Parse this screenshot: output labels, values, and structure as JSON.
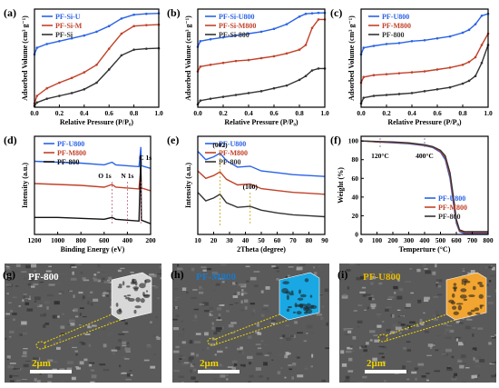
{
  "panels": [
    {
      "id": "a",
      "letter": "(a)",
      "ylabel": "Adsorbed Volume (cm³ g⁻¹)",
      "xlabel": "Relative Pressure (P/P₀)",
      "xticks": [
        "0.0",
        "0.2",
        "0.4",
        "0.6",
        "0.8",
        "1.0"
      ],
      "legend": [
        {
          "label": "PF-Si-U",
          "color": "#2a63e6"
        },
        {
          "label": "PF-Si-M",
          "color": "#c1422a"
        },
        {
          "label": "PF-Si",
          "color": "#333333"
        }
      ]
    },
    {
      "id": "b",
      "letter": "(b)",
      "ylabel": "Adsorbed Volume (cm³ g⁻¹)",
      "xlabel": "Relative Pressure (P/P₀)",
      "xticks": [
        "0.0",
        "0.2",
        "0.4",
        "0.6",
        "0.8",
        "1.0"
      ],
      "legend": [
        {
          "label": "PF-Si-U800",
          "color": "#2a63e6"
        },
        {
          "label": "PF-Si-M800",
          "color": "#c1422a"
        },
        {
          "label": "PF-Si-800",
          "color": "#333333"
        }
      ]
    },
    {
      "id": "c",
      "letter": "(c)",
      "ylabel": "Adsorbed Volume (cm³ g⁻¹)",
      "xlabel": "Relative Pressure (P/P₀)",
      "xticks": [
        "0.0",
        "0.2",
        "0.4",
        "0.6",
        "0.8",
        "1.0"
      ],
      "legend": [
        {
          "label": "PF-U800",
          "color": "#2a63e6"
        },
        {
          "label": "PF-M800",
          "color": "#c1422a"
        },
        {
          "label": "PF-800",
          "color": "#333333"
        }
      ]
    },
    {
      "id": "d",
      "letter": "(d)",
      "ylabel": "Intensity (a.u.)",
      "xlabel": "Binding Energy (eV)",
      "xticks": [
        "1200",
        "1000",
        "800",
        "600",
        "400",
        "200"
      ],
      "legend": [
        {
          "label": "PF-U800",
          "color": "#2a63e6"
        },
        {
          "label": "PF-M800",
          "color": "#c1422a"
        },
        {
          "label": "PF-800",
          "color": "#111111"
        }
      ],
      "annotations": [
        "O 1s",
        "N 1s",
        "C 1s"
      ]
    },
    {
      "id": "e",
      "letter": "(e)",
      "ylabel": "Intensity (a.u.)",
      "xlabel": "2Theta (degree)",
      "xticks": [
        "10",
        "20",
        "30",
        "40",
        "50",
        "60",
        "70",
        "80",
        "90"
      ],
      "legend": [
        {
          "label": "PF-U800",
          "color": "#2a63e6"
        },
        {
          "label": "PF-M800",
          "color": "#c1422a"
        },
        {
          "label": "PF-800",
          "color": "#333333"
        }
      ],
      "annotations": [
        "(002)",
        "(100)"
      ]
    },
    {
      "id": "f",
      "letter": "(f)",
      "ylabel": "Weight (%)",
      "xlabel": "Temperture (°C)",
      "xticks": [
        "0",
        "100",
        "200",
        "300",
        "400",
        "500",
        "600",
        "700",
        "800"
      ],
      "yticks": [
        "0",
        "20",
        "40",
        "60",
        "80",
        "100"
      ],
      "legend": [
        {
          "label": "PF-U800",
          "color": "#2a63e6"
        },
        {
          "label": "PF-M800",
          "color": "#c1422a"
        },
        {
          "label": "PF-800",
          "color": "#333333"
        }
      ],
      "annotations": [
        "120°C",
        "400°C"
      ]
    }
  ],
  "sem": [
    {
      "letter": "(g)",
      "label": "PF-800",
      "label_color": "#ffffff",
      "inset_color": "#d8d8d8",
      "scale": "2μm"
    },
    {
      "letter": "(h)",
      "label": "PF-M800",
      "label_color": "#1c78c8",
      "inset_color": "#19a8e4",
      "scale": "2μm"
    },
    {
      "letter": "(i)",
      "label": "PF-U800",
      "label_color": "#e6b800",
      "inset_color": "#f2a530",
      "scale": "2μm"
    }
  ],
  "chart_data": [
    {
      "type": "line",
      "panel": "a",
      "xlabel": "Relative Pressure (P/P₀)",
      "ylabel": "Adsorbed Volume (cm³ g⁻¹)",
      "xlim": [
        0,
        1
      ],
      "series": [
        {
          "name": "PF-Si-U",
          "x": [
            0,
            0.02,
            0.1,
            0.2,
            0.3,
            0.4,
            0.5,
            0.6,
            0.7,
            0.8,
            0.9,
            1.0
          ],
          "y": [
            5.6,
            6.3,
            6.7,
            7.0,
            7.3,
            7.6,
            8.0,
            8.6,
            9.4,
            9.8,
            9.9,
            9.95
          ]
        },
        {
          "name": "PF-Si-M",
          "x": [
            0,
            0.02,
            0.1,
            0.2,
            0.3,
            0.4,
            0.5,
            0.6,
            0.7,
            0.8,
            0.9,
            1.0
          ],
          "y": [
            0.4,
            1.2,
            2.0,
            2.6,
            3.1,
            3.7,
            4.5,
            6.2,
            7.8,
            8.6,
            8.7,
            8.75
          ]
        },
        {
          "name": "PF-Si",
          "x": [
            0,
            0.02,
            0.1,
            0.2,
            0.3,
            0.4,
            0.5,
            0.6,
            0.7,
            0.8,
            0.9,
            1.0
          ],
          "y": [
            0.15,
            0.5,
            0.9,
            1.2,
            1.5,
            1.9,
            2.6,
            4.0,
            5.5,
            6.1,
            6.2,
            6.25
          ]
        }
      ]
    },
    {
      "type": "line",
      "panel": "b",
      "xlabel": "Relative Pressure (P/P₀)",
      "ylabel": "Adsorbed Volume (cm³ g⁻¹)",
      "xlim": [
        0,
        1
      ],
      "series": [
        {
          "name": "PF-Si-U800",
          "x": [
            0,
            0.02,
            0.1,
            0.2,
            0.3,
            0.4,
            0.5,
            0.6,
            0.7,
            0.8,
            0.85,
            0.9,
            0.95,
            1.0
          ],
          "y": [
            6.4,
            7.0,
            7.2,
            7.4,
            7.6,
            7.8,
            8.0,
            8.3,
            8.8,
            9.6,
            9.9,
            9.95,
            10.0,
            10.0
          ]
        },
        {
          "name": "PF-Si-M800",
          "x": [
            0,
            0.02,
            0.1,
            0.2,
            0.3,
            0.4,
            0.5,
            0.6,
            0.7,
            0.8,
            0.85,
            0.9,
            0.95,
            1.0
          ],
          "y": [
            3.8,
            4.3,
            4.5,
            4.7,
            4.9,
            5.0,
            5.2,
            5.4,
            5.7,
            6.1,
            6.6,
            8.4,
            9.3,
            9.3
          ]
        },
        {
          "name": "PF-Si-800",
          "x": [
            0,
            0.02,
            0.1,
            0.2,
            0.3,
            0.4,
            0.5,
            0.6,
            0.7,
            0.8,
            0.85,
            0.9,
            0.95,
            1.0
          ],
          "y": [
            0.3,
            0.7,
            0.9,
            1.1,
            1.3,
            1.5,
            1.7,
            2.0,
            2.3,
            2.9,
            3.3,
            3.9,
            4.1,
            4.1
          ]
        }
      ]
    },
    {
      "type": "line",
      "panel": "c",
      "xlabel": "Relative Pressure (P/P₀)",
      "ylabel": "Adsorbed Volume (cm³ g⁻¹)",
      "xlim": [
        0,
        1
      ],
      "series": [
        {
          "name": "PF-U800",
          "x": [
            0,
            0.02,
            0.1,
            0.2,
            0.3,
            0.4,
            0.5,
            0.6,
            0.7,
            0.8,
            0.85,
            0.9,
            0.95,
            1.0
          ],
          "y": [
            5.6,
            6.3,
            6.5,
            6.7,
            6.8,
            7.0,
            7.1,
            7.3,
            7.5,
            7.9,
            8.2,
            8.8,
            9.7,
            9.9
          ]
        },
        {
          "name": "PF-M800",
          "x": [
            0,
            0.02,
            0.1,
            0.2,
            0.3,
            0.4,
            0.5,
            0.6,
            0.7,
            0.8,
            0.85,
            0.9,
            0.95,
            1.0
          ],
          "y": [
            2.6,
            3.2,
            3.4,
            3.5,
            3.6,
            3.7,
            3.8,
            4.0,
            4.2,
            4.5,
            4.8,
            5.3,
            6.6,
            7.8
          ]
        },
        {
          "name": "PF-800",
          "x": [
            0,
            0.02,
            0.1,
            0.2,
            0.3,
            0.4,
            0.5,
            0.6,
            0.7,
            0.8,
            0.85,
            0.9,
            0.95,
            1.0
          ],
          "y": [
            0.4,
            1.0,
            1.2,
            1.3,
            1.4,
            1.5,
            1.7,
            1.9,
            2.1,
            2.5,
            2.8,
            3.3,
            4.7,
            6.6
          ]
        }
      ]
    },
    {
      "type": "line",
      "panel": "d",
      "xlabel": "Binding Energy (eV)",
      "ylabel": "Intensity (a.u.)",
      "xlim": [
        1200,
        200
      ],
      "series": [
        {
          "name": "PF-U800",
          "x": [
            1200,
            1000,
            800,
            600,
            532,
            500,
            400,
            300,
            285,
            284,
            280,
            200
          ],
          "y": [
            8.2,
            8.1,
            8.0,
            7.8,
            8.1,
            7.8,
            7.7,
            7.6,
            9.6,
            9.8,
            7.7,
            7.4
          ]
        },
        {
          "name": "PF-M800",
          "x": [
            1200,
            1000,
            800,
            600,
            532,
            500,
            400,
            300,
            285,
            284,
            280,
            200
          ],
          "y": [
            5.7,
            5.6,
            5.5,
            5.3,
            5.6,
            5.3,
            5.2,
            5.1,
            7.2,
            7.4,
            5.2,
            4.9
          ]
        },
        {
          "name": "PF-800",
          "x": [
            1200,
            1000,
            800,
            600,
            532,
            500,
            400,
            300,
            285,
            284,
            280,
            200
          ],
          "y": [
            1.9,
            1.9,
            1.8,
            1.7,
            1.9,
            1.7,
            1.6,
            1.5,
            8.5,
            8.9,
            1.6,
            1.2
          ]
        }
      ]
    },
    {
      "type": "line",
      "panel": "e",
      "xlabel": "2Theta (degree)",
      "ylabel": "Intensity (a.u.)",
      "xlim": [
        10,
        90
      ],
      "series": [
        {
          "name": "PF-U800",
          "x": [
            10,
            15,
            20,
            24,
            28,
            35,
            43,
            50,
            60,
            70,
            80,
            90
          ],
          "y": [
            8.9,
            8.0,
            8.3,
            8.7,
            7.9,
            7.2,
            7.3,
            6.8,
            6.6,
            6.4,
            6.3,
            6.2
          ]
        },
        {
          "name": "PF-M800",
          "x": [
            10,
            15,
            20,
            24,
            28,
            35,
            43,
            50,
            60,
            70,
            80,
            90
          ],
          "y": [
            6.8,
            6.0,
            6.3,
            6.7,
            5.9,
            5.3,
            5.4,
            4.9,
            4.7,
            4.5,
            4.4,
            4.3
          ]
        },
        {
          "name": "PF-800",
          "x": [
            10,
            15,
            20,
            24,
            28,
            35,
            43,
            50,
            60,
            70,
            80,
            90
          ],
          "y": [
            4.5,
            3.6,
            3.9,
            4.3,
            3.4,
            2.9,
            3.0,
            2.6,
            2.3,
            2.1,
            2.0,
            1.9
          ]
        }
      ]
    },
    {
      "type": "line",
      "panel": "f",
      "xlabel": "Temperture (°C)",
      "ylabel": "Weight (%)",
      "xlim": [
        0,
        800
      ],
      "ylim": [
        0,
        105
      ],
      "series": [
        {
          "name": "PF-U800",
          "x": [
            0,
            100,
            200,
            300,
            400,
            450,
            500,
            530,
            560,
            580,
            600,
            620,
            650,
            700,
            800
          ],
          "y": [
            100,
            99,
            98,
            97,
            95,
            93,
            88,
            80,
            60,
            35,
            12,
            3,
            1,
            1,
            1
          ]
        },
        {
          "name": "PF-M800",
          "x": [
            0,
            100,
            200,
            300,
            400,
            450,
            500,
            530,
            560,
            580,
            600,
            620,
            650,
            700,
            800
          ],
          "y": [
            100,
            99,
            98.5,
            97.5,
            95.5,
            93.5,
            89,
            82,
            63,
            38,
            14,
            4,
            2,
            2,
            2
          ]
        },
        {
          "name": "PF-800",
          "x": [
            0,
            100,
            200,
            300,
            400,
            450,
            500,
            530,
            560,
            580,
            600,
            620,
            650,
            700,
            800
          ],
          "y": [
            100,
            99.5,
            99,
            98,
            96,
            94,
            90,
            84,
            66,
            42,
            16,
            5,
            3,
            3,
            3
          ]
        }
      ]
    }
  ]
}
